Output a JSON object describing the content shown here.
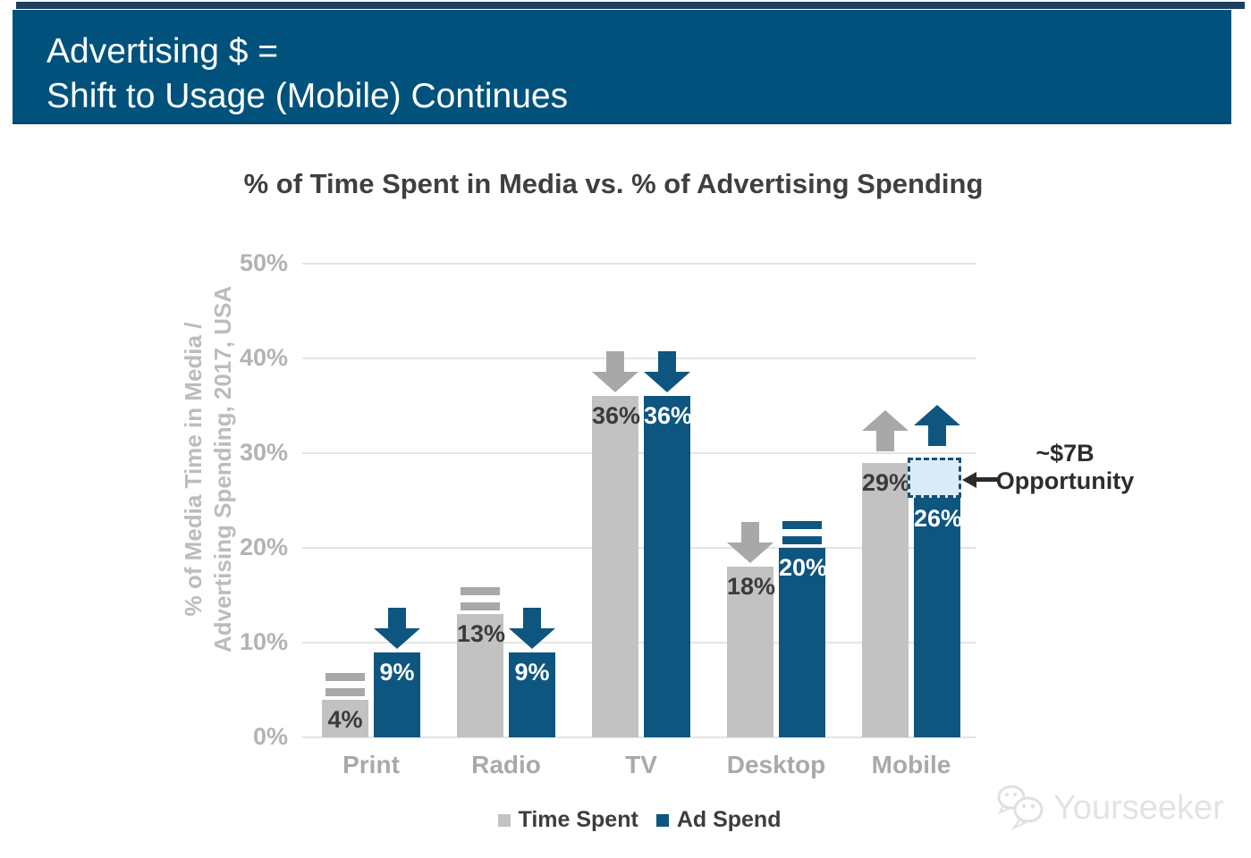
{
  "banner": {
    "title_line1": "Advertising $ =",
    "title_line2": "Shift to Usage (Mobile) Continues",
    "bg_color": "#00527d",
    "top_strip_color": "#1d3e5f"
  },
  "chart_data": {
    "type": "bar",
    "title": "% of Time Spent in Media vs. % of Advertising Spending",
    "ylabel_line1": "% of Media Time in Media /",
    "ylabel_line2": "Advertising Spending, 2017, USA",
    "unit": "%",
    "ylim": [
      0,
      50
    ],
    "y_ticks": [
      50,
      40,
      30,
      20,
      10,
      0
    ],
    "grid": true,
    "legend_position": "bottom",
    "categories": [
      "Print",
      "Radio",
      "TV",
      "Desktop",
      "Mobile"
    ],
    "series": [
      {
        "name": "Time Spent",
        "color": "#c2c2c2",
        "symbol_color": "#a8a8a8",
        "label_color": "#3b3b3b",
        "values": [
          4,
          13,
          36,
          18,
          29
        ],
        "trends": [
          "flat",
          "flat",
          "down",
          "down",
          "up"
        ]
      },
      {
        "name": "Ad Spend",
        "color": "#0e567f",
        "symbol_color": "#0e567f",
        "label_color": "#ffffff",
        "values": [
          9,
          9,
          36,
          20,
          26
        ],
        "trends": [
          "down",
          "down",
          "down",
          "flat",
          "up"
        ]
      }
    ],
    "annotation": {
      "line1": "~$7B",
      "line2": "Opportunity",
      "target_category": "Mobile",
      "target_series": "Ad Spend",
      "box_from_pct": 26,
      "box_to_pct": 29.5,
      "box_fill": "#d9ecf8",
      "box_border": "#1b4f70"
    }
  },
  "legend": {
    "items": [
      {
        "label": "Time Spent",
        "color": "#c2c2c2"
      },
      {
        "label": "Ad Spend",
        "color": "#0e567f"
      }
    ]
  },
  "watermark": {
    "text": "Yourseeker"
  }
}
